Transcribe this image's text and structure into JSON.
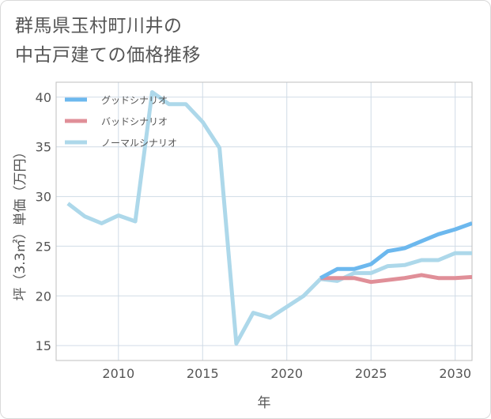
{
  "title_lines": [
    "群馬県玉村町川井の",
    "中古戸建ての価格推移"
  ],
  "chart_data": {
    "type": "line",
    "title": "群馬県玉村町川井の中古戸建ての価格推移",
    "xlabel": "年",
    "ylabel": "坪（3.3㎡）単価（万円）",
    "xlim": [
      2006.3,
      2031
    ],
    "ylim": [
      13.5,
      41.5
    ],
    "xticks": [
      2010,
      2015,
      2020,
      2025,
      2030
    ],
    "yticks": [
      15,
      20,
      25,
      30,
      35,
      40
    ],
    "grid": true,
    "legend_position": "top-left",
    "series": [
      {
        "name": "グッドシナリオ",
        "color": "#6cb8ee",
        "x": [
          2022,
          2023,
          2024,
          2025,
          2026,
          2027,
          2028,
          2029,
          2030,
          2031
        ],
        "values": [
          21.8,
          22.7,
          22.7,
          23.2,
          24.5,
          24.8,
          25.5,
          26.2,
          26.7,
          27.3
        ]
      },
      {
        "name": "バッドシナリオ",
        "color": "#e08f98",
        "x": [
          2022,
          2023,
          2024,
          2025,
          2026,
          2027,
          2028,
          2029,
          2030,
          2031
        ],
        "values": [
          21.8,
          21.8,
          21.8,
          21.4,
          21.6,
          21.8,
          22.1,
          21.8,
          21.8,
          21.9
        ]
      },
      {
        "name": "ノーマルシナリオ",
        "color": "#add8ea",
        "x": [
          2007,
          2008,
          2009,
          2010,
          2011,
          2012,
          2013,
          2014,
          2015,
          2016,
          2017,
          2018,
          2019,
          2020,
          2021,
          2022,
          2023,
          2024,
          2025,
          2026,
          2027,
          2028,
          2029,
          2030,
          2031
        ],
        "values": [
          29.3,
          28.0,
          27.3,
          28.1,
          27.5,
          40.5,
          39.3,
          39.3,
          37.5,
          34.9,
          15.2,
          18.3,
          17.8,
          18.9,
          20.0,
          21.7,
          21.5,
          22.3,
          22.3,
          23.0,
          23.1,
          23.6,
          23.6,
          24.3,
          24.3
        ]
      }
    ]
  }
}
